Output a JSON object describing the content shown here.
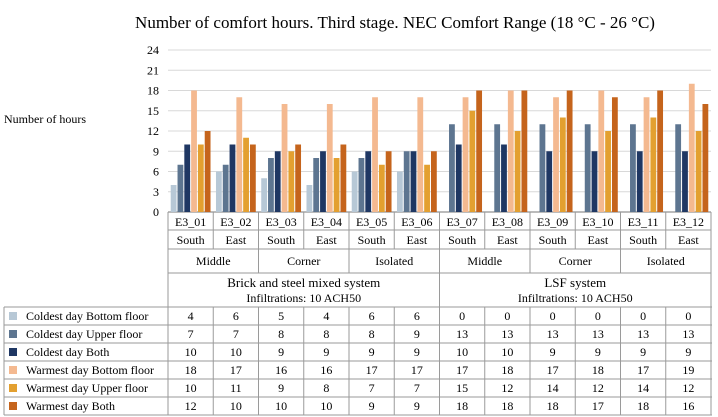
{
  "chart_data": {
    "type": "bar",
    "title": "Number of comfort hours. Third stage. NEC Comfort Range  (18 °C - 26 °C)",
    "ylabel": "Number of hours",
    "ylim": [
      0,
      24
    ],
    "yticks": [
      0,
      3,
      6,
      9,
      12,
      15,
      18,
      21,
      24
    ],
    "grid": "horizontal",
    "legend": "table-below",
    "categories": [
      "E3_01",
      "E3_02",
      "E3_03",
      "E3_04",
      "E3_05",
      "E3_06",
      "E3_07",
      "E3_08",
      "E3_09",
      "E3_10",
      "E3_11",
      "E3_12"
    ],
    "orientations": [
      "South",
      "East",
      "South",
      "East",
      "South",
      "East",
      "South",
      "East",
      "South",
      "East",
      "South",
      "East"
    ],
    "positions": [
      "Middle",
      "Corner",
      "Isolated",
      "Middle",
      "Corner",
      "Isolated"
    ],
    "systems": [
      {
        "name": "Brick and steel mixed system",
        "infiltration": "Infiltrations:  10 ACH50"
      },
      {
        "name": "LSF system",
        "infiltration": "Infiltrations:  10 ACH50"
      }
    ],
    "series": [
      {
        "name": "Coldest day Bottom floor",
        "color": "#b7c8d6",
        "values": [
          4,
          6,
          5,
          4,
          6,
          6,
          0,
          0,
          0,
          0,
          0,
          0
        ]
      },
      {
        "name": "Coldest day Upper floor",
        "color": "#5d7590",
        "values": [
          7,
          7,
          8,
          8,
          8,
          9,
          13,
          13,
          13,
          13,
          13,
          13
        ]
      },
      {
        "name": "Coldest day Both",
        "color": "#1f3763",
        "values": [
          10,
          10,
          9,
          9,
          9,
          9,
          10,
          10,
          9,
          9,
          9,
          9
        ]
      },
      {
        "name": "Warmest day Bottom floor",
        "color": "#f4b990",
        "values": [
          18,
          17,
          16,
          16,
          17,
          17,
          17,
          18,
          17,
          18,
          17,
          19
        ]
      },
      {
        "name": "Warmest day Upper floor",
        "color": "#e3a030",
        "values": [
          10,
          11,
          9,
          8,
          7,
          7,
          15,
          12,
          14,
          12,
          14,
          12
        ]
      },
      {
        "name": "Warmest day Both",
        "color": "#c5641c",
        "values": [
          12,
          10,
          10,
          10,
          9,
          9,
          18,
          18,
          18,
          17,
          18,
          16
        ]
      }
    ]
  }
}
